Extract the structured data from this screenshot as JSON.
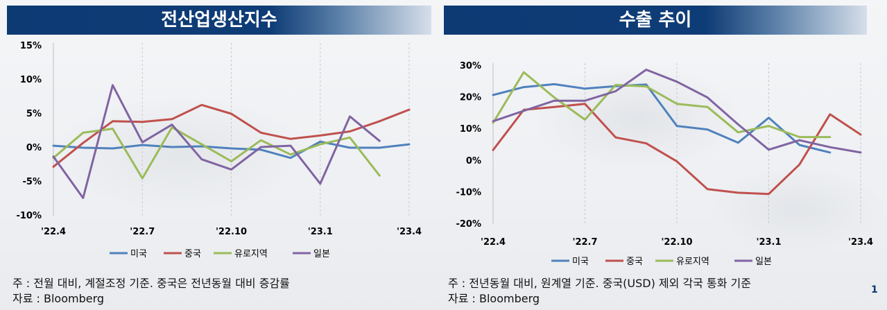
{
  "chart_data": [
    {
      "type": "line",
      "title": "전산업생산지수",
      "x_ticks": [
        "'22.4",
        "'22.7",
        "'22.10",
        "'23.1",
        "'23.4"
      ],
      "x": [
        "'22.4",
        "'22.5",
        "'22.6",
        "'22.7",
        "'22.8",
        "'22.9",
        "'22.10",
        "'22.11",
        "'22.12",
        "'23.1",
        "'23.2",
        "'23.3",
        "'23.4"
      ],
      "y_ticks": [
        "15%",
        "10%",
        "5%",
        "0%",
        "-5%",
        "-10%"
      ],
      "ylim": [
        -10,
        15
      ],
      "y_unit": "%",
      "grid": "vertical",
      "legend": "bottom",
      "series": [
        {
          "name": "미국",
          "color": "#4f81bd",
          "values": [
            0.3,
            0.0,
            -0.1,
            0.4,
            0.1,
            0.2,
            -0.1,
            -0.3,
            -1.5,
            0.9,
            0.0,
            0.0,
            0.5
          ]
        },
        {
          "name": "중국",
          "color": "#c0504d",
          "values": [
            -2.8,
            0.7,
            3.9,
            3.8,
            4.2,
            6.3,
            5.0,
            2.2,
            1.3,
            1.8,
            2.4,
            3.9,
            5.6
          ]
        },
        {
          "name": "유로지역",
          "color": "#9bbb59",
          "values": [
            -1.5,
            2.2,
            2.8,
            -4.5,
            3.0,
            0.5,
            -2.0,
            1.1,
            -1.0,
            0.5,
            1.5,
            -4.1,
            null
          ]
        },
        {
          "name": "일본",
          "color": "#8064a2",
          "values": [
            -1.3,
            -7.4,
            9.2,
            0.8,
            3.4,
            -1.7,
            -3.2,
            0.1,
            0.3,
            -5.3,
            4.6,
            1.0,
            null
          ]
        }
      ]
    },
    {
      "type": "line",
      "title": "수출 추이",
      "x_ticks": [
        "'22.4",
        "'22.7",
        "'22.10",
        "'23.1",
        "'23.4"
      ],
      "x": [
        "'22.4",
        "'22.5",
        "'22.6",
        "'22.7",
        "'22.8",
        "'22.9",
        "'22.10",
        "'22.11",
        "'22.12",
        "'23.1",
        "'23.2",
        "'23.3",
        "'23.4"
      ],
      "y_ticks": [
        "30%",
        "20%",
        "10%",
        "0%",
        "-10%",
        "-20%"
      ],
      "ylim": [
        -20,
        30
      ],
      "y_unit": "%",
      "grid": "vertical",
      "legend": "bottom",
      "series": [
        {
          "name": "미국",
          "color": "#4f81bd",
          "values": [
            20.8,
            23.3,
            24.2,
            22.8,
            23.6,
            24.1,
            11.0,
            9.9,
            5.7,
            13.6,
            5.0,
            2.6,
            null
          ]
        },
        {
          "name": "중국",
          "color": "#c0504d",
          "values": [
            3.4,
            16.1,
            17.0,
            18.0,
            7.4,
            5.5,
            -0.2,
            -9.0,
            -10.1,
            -10.5,
            -1.2,
            14.7,
            8.3
          ]
        },
        {
          "name": "유로지역",
          "color": "#9bbb59",
          "values": [
            12.0,
            28.0,
            20.0,
            13.0,
            24.0,
            23.5,
            18.0,
            17.0,
            9.0,
            11.0,
            7.5,
            7.5,
            null
          ]
        },
        {
          "name": "일본",
          "color": "#8064a2",
          "values": [
            12.5,
            15.8,
            19.0,
            19.0,
            22.0,
            28.8,
            25.0,
            20.0,
            11.5,
            3.5,
            6.5,
            4.3,
            2.6
          ]
        }
      ]
    }
  ],
  "notes": {
    "left_line1": "주 : 전월 대비, 계절조정 기준. 중국은 전년동월 대비 증감률",
    "left_line2": "자료 : Bloomberg",
    "right_line1": "주 : 전년동월 대비, 원계열 기준. 중국(USD) 제외 각국 통화 기준",
    "right_line2": "자료 : Bloomberg"
  },
  "page_number": "1"
}
